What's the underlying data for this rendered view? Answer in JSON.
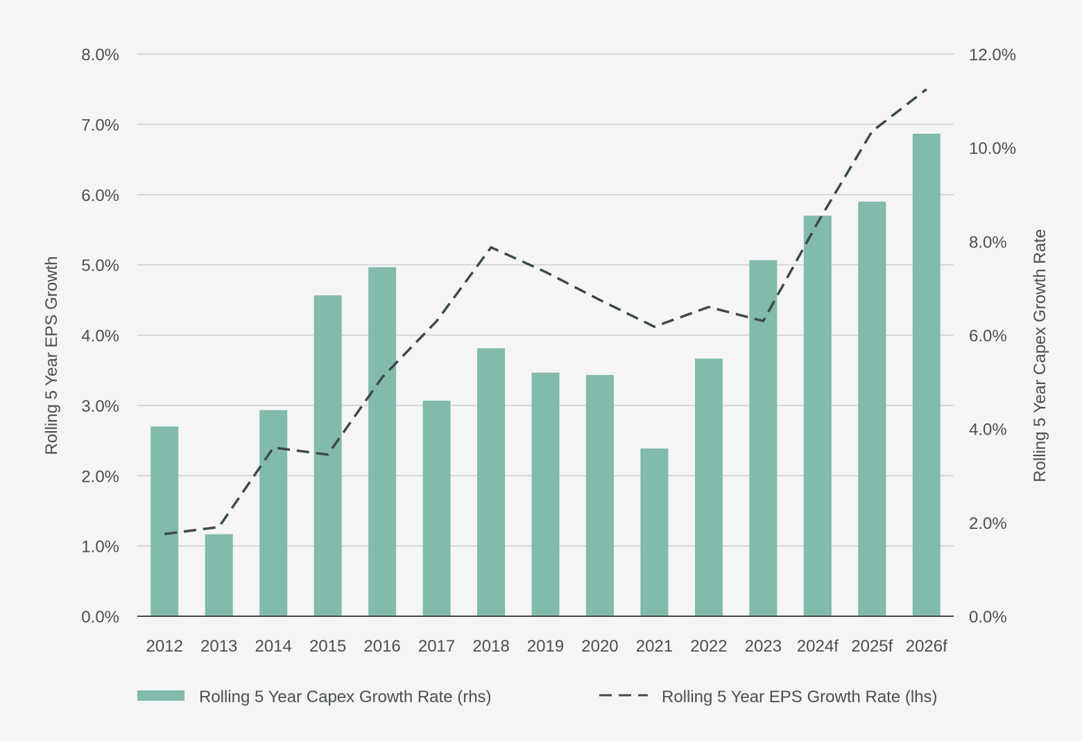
{
  "chart_data": {
    "type": "bar",
    "categories": [
      "2012",
      "2013",
      "2014",
      "2015",
      "2016",
      "2017",
      "2018",
      "2019",
      "2020",
      "2021",
      "2022",
      "2023",
      "2024f",
      "2025f",
      "2026f"
    ],
    "series": [
      {
        "name": "Rolling 5 Year Capex Growth Rate (rhs)",
        "type": "bar",
        "axis": "right",
        "color": "#82baac",
        "values": [
          4.05,
          1.75,
          4.4,
          6.85,
          7.45,
          4.6,
          5.72,
          5.2,
          5.15,
          3.58,
          5.5,
          7.6,
          8.55,
          8.85,
          10.3
        ]
      },
      {
        "name": "Rolling 5 Year EPS Growth Rate (lhs)",
        "type": "line",
        "style": "dashed",
        "axis": "left",
        "color": "#3d4a4a",
        "values": [
          1.17,
          1.27,
          2.4,
          2.3,
          3.4,
          4.2,
          5.25,
          4.9,
          4.5,
          4.12,
          4.4,
          4.2,
          5.6,
          6.9,
          7.5
        ]
      }
    ],
    "y_left": {
      "label": "Rolling 5 Year EPS Growth",
      "lim": [
        0,
        8
      ],
      "ticks": [
        "0.0%",
        "1.0%",
        "2.0%",
        "3.0%",
        "4.0%",
        "5.0%",
        "6.0%",
        "7.0%",
        "8.0%"
      ]
    },
    "y_right": {
      "label": "Rolling 5 Year Capex Growth Rate",
      "lim": [
        0,
        12
      ],
      "ticks": [
        "0.0%",
        "2.0%",
        "4.0%",
        "6.0%",
        "8.0%",
        "10.0%",
        "12.0%"
      ]
    },
    "grid": true,
    "legend_position": "bottom"
  }
}
